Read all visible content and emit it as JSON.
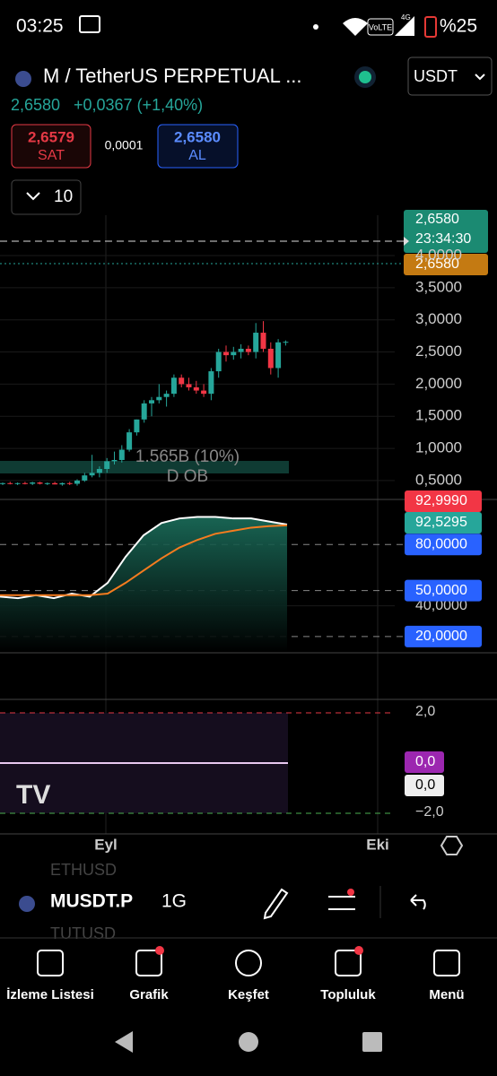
{
  "status_bar": {
    "time": "03:25",
    "network": "VoLTE",
    "signal": "4G",
    "battery": "%25"
  },
  "header": {
    "symbol": "M / TetherUS PERPETUAL ...",
    "currency": "USDT",
    "last": "2,6580",
    "change": "+0,0367 (+1,40%)"
  },
  "order": {
    "sell_price": "2,6579",
    "sell": "SAT",
    "spread": "0,0001",
    "buy_price": "2,6580",
    "buy": "AL",
    "quantity": "10"
  },
  "price_chart": {
    "ylim": [
      0.22,
      4.6
    ],
    "yticks": [
      {
        "value": 0.5,
        "label": "0,5000"
      },
      {
        "value": 1,
        "label": "1,0000"
      },
      {
        "value": 1.5,
        "label": "1,5000"
      },
      {
        "value": 2,
        "label": "2,0000"
      },
      {
        "value": 2.5,
        "label": "2,5000"
      },
      {
        "value": 3,
        "label": "3,0000"
      },
      {
        "value": 3.5,
        "label": "3,5000"
      },
      {
        "value": 4,
        "label": "4,0000"
      }
    ],
    "candles": [
      [
        0.45,
        0.47,
        0.43,
        0.46
      ],
      [
        0.46,
        0.48,
        0.44,
        0.45
      ],
      [
        0.45,
        0.47,
        0.43,
        0.46
      ],
      [
        0.46,
        0.48,
        0.44,
        0.45
      ],
      [
        0.45,
        0.48,
        0.43,
        0.47
      ],
      [
        0.47,
        0.48,
        0.44,
        0.45
      ],
      [
        0.45,
        0.47,
        0.43,
        0.46
      ],
      [
        0.46,
        0.48,
        0.44,
        0.44
      ],
      [
        0.44,
        0.47,
        0.42,
        0.46
      ],
      [
        0.46,
        0.48,
        0.43,
        0.45
      ],
      [
        0.45,
        0.52,
        0.42,
        0.5
      ],
      [
        0.5,
        0.62,
        0.48,
        0.58
      ],
      [
        0.58,
        0.9,
        0.55,
        0.62
      ],
      [
        0.62,
        0.72,
        0.55,
        0.68
      ],
      [
        0.68,
        0.85,
        0.62,
        0.8
      ],
      [
        0.8,
        0.95,
        0.75,
        0.82
      ],
      [
        0.82,
        1.05,
        0.78,
        0.98
      ],
      [
        0.98,
        1.3,
        0.95,
        1.25
      ],
      [
        1.25,
        1.45,
        1.2,
        1.45
      ],
      [
        1.45,
        1.75,
        1.4,
        1.7
      ],
      [
        1.7,
        1.8,
        1.5,
        1.75
      ],
      [
        1.75,
        2,
        1.7,
        1.8
      ],
      [
        1.8,
        1.9,
        1.65,
        1.85
      ],
      [
        1.85,
        2.15,
        1.8,
        2.1
      ],
      [
        2.1,
        2.15,
        1.95,
        2
      ],
      [
        2,
        2.1,
        1.9,
        1.95
      ],
      [
        1.95,
        2.05,
        1.85,
        1.9
      ],
      [
        1.9,
        2,
        1.8,
        1.85
      ],
      [
        1.85,
        2.25,
        1.75,
        2.2
      ],
      [
        2.2,
        2.55,
        2.1,
        2.5
      ],
      [
        2.5,
        2.6,
        2.35,
        2.45
      ],
      [
        2.45,
        2.58,
        2.38,
        2.5
      ],
      [
        2.5,
        2.62,
        2.4,
        2.55
      ],
      [
        2.55,
        2.6,
        2.45,
        2.5
      ],
      [
        2.5,
        2.95,
        2.4,
        2.8
      ],
      [
        2.8,
        2.98,
        2.5,
        2.55
      ],
      [
        2.55,
        2.65,
        2.15,
        2.25
      ],
      [
        2.25,
        2.7,
        2.1,
        2.65
      ],
      [
        2.65,
        2.68,
        2.6,
        2.658
      ]
    ],
    "volume_label": "1.565B (10%)",
    "ob_label": "D OB",
    "last_tag": "2,6580",
    "countdown": "23:34:30",
    "mark_tag": "2,6580"
  },
  "oscillator": {
    "ylim": [
      10,
      108.8
    ],
    "yticks": [
      {
        "value": 20,
        "label": "20,0000"
      },
      {
        "value": 40,
        "label": "40,0000"
      },
      {
        "value": 50,
        "label": "50,0000"
      },
      {
        "value": 80,
        "label": "80,0000"
      }
    ],
    "series": [
      {
        "color": "#ffffff",
        "values": [
          46,
          45,
          47,
          45,
          48,
          46,
          55,
          72,
          86,
          94,
          97,
          98,
          98,
          97,
          97,
          95,
          92.999
        ],
        "value_label": "92,9990"
      },
      {
        "color": "#f57c1f",
        "values": [
          47,
          47,
          47,
          47,
          47,
          47,
          48,
          55,
          63,
          71,
          78,
          83,
          87,
          89,
          91,
          92,
          92.5295
        ],
        "value_label": "92,5295"
      }
    ]
  },
  "lower_panel": {
    "upper": "2,0",
    "lower": "−2,0",
    "value_a": "0,0",
    "value_b": "0,0"
  },
  "time_axis": [
    "Eyl",
    "Eki"
  ],
  "toolbar": {
    "symbol": "MUSDT.P",
    "interval": "1G",
    "ghost_top": "ETHUSD",
    "ghost_bottom": "TUTUSD"
  },
  "nav": [
    "İzleme Listesi",
    "Grafik",
    "Keşfet",
    "Topluluk",
    "Menü"
  ]
}
